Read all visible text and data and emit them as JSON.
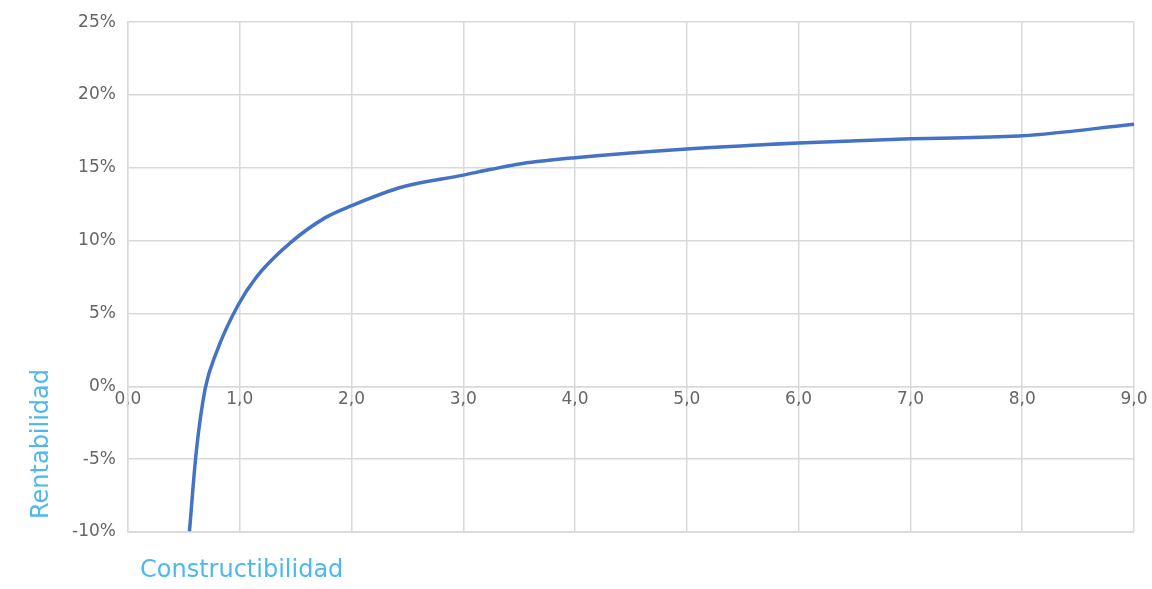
{
  "chart_data": {
    "type": "line",
    "xlabel": "Constructibilidad",
    "ylabel": "Rentabilidad",
    "x": [
      0.55,
      0.61,
      0.69,
      0.79,
      0.98,
      1.16,
      1.46,
      1.77,
      2.0,
      2.46,
      3.0,
      3.25,
      3.53,
      4.0,
      5.0,
      6.0,
      7.0,
      8.0,
      9.0
    ],
    "series": [
      {
        "color": "#4472c4",
        "values": [
          -10,
          -4.6,
          -0.2,
          2.3,
          5.5,
          7.6,
          9.9,
          11.6,
          12.4,
          13.7,
          14.5,
          14.9,
          15.3,
          15.7,
          16.3,
          16.7,
          17.0,
          17.2,
          18.0
        ]
      }
    ],
    "xlim": [
      0,
      9
    ],
    "xticks": [
      {
        "value": 0,
        "label": "0,0"
      },
      {
        "value": 1,
        "label": "1,0"
      },
      {
        "value": 2,
        "label": "2,0"
      },
      {
        "value": 3,
        "label": "3,0"
      },
      {
        "value": 4,
        "label": "4,0"
      },
      {
        "value": 5,
        "label": "5,0"
      },
      {
        "value": 6,
        "label": "6,0"
      },
      {
        "value": 7,
        "label": "7,0"
      },
      {
        "value": 8,
        "label": "8,0"
      },
      {
        "value": 9,
        "label": "9,0"
      }
    ],
    "ylim": [
      -10,
      25
    ],
    "yticks": [
      {
        "value": -10,
        "label": "-10%"
      },
      {
        "value": -5,
        "label": "-5%"
      },
      {
        "value": 0,
        "label": "0%"
      },
      {
        "value": 5,
        "label": "5%"
      },
      {
        "value": 10,
        "label": "10%"
      },
      {
        "value": 15,
        "label": "15%"
      },
      {
        "value": 20,
        "label": "20%"
      },
      {
        "value": 25,
        "label": "25%"
      }
    ],
    "grid": true,
    "marker": "none",
    "line_style": "solid",
    "legend": false
  }
}
